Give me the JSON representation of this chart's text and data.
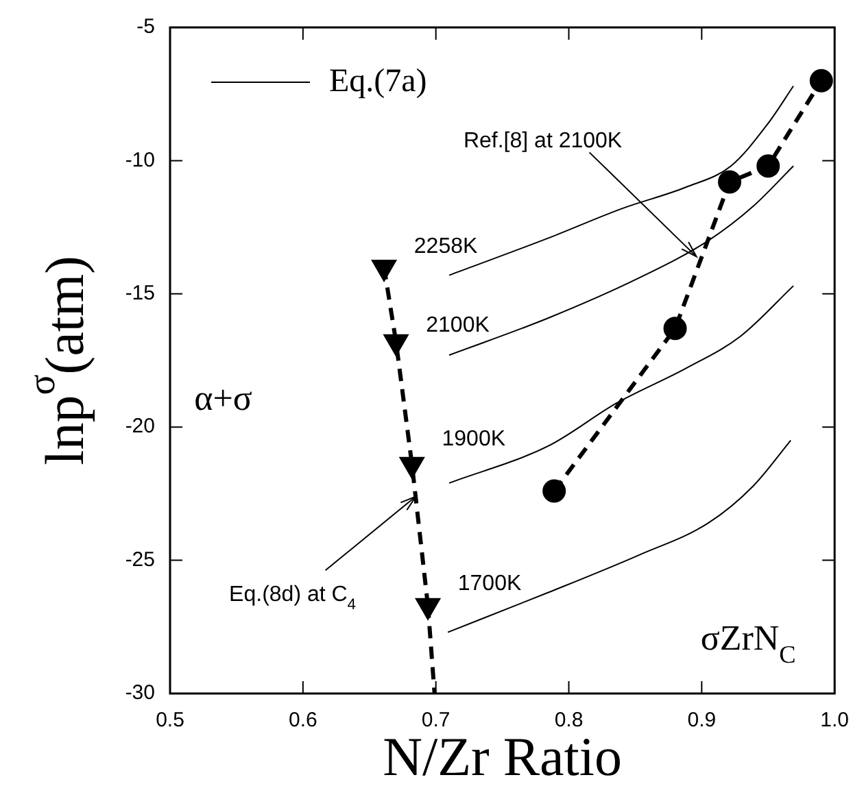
{
  "chart_data": {
    "type": "line",
    "xlabel": "N/Zr Ratio",
    "ylabel": "lnp$^{σ}$(atm)",
    "xlim": [
      0.5,
      1.0
    ],
    "xticks": [
      0.5,
      0.6,
      0.7,
      0.8,
      0.9,
      {
        "value": 1.0,
        "label": "1.0"
      }
    ],
    "ylim": [
      -30,
      -5
    ],
    "yticks": [
      -30,
      -25,
      -20,
      -15,
      -10,
      -5
    ],
    "grid": false,
    "legend": "top left",
    "series": [
      {
        "name": "Eq.(7a)",
        "color": "#000000",
        "marker": "none",
        "line_style": "solid",
        "x": [
          0.71,
          0.785,
          0.84,
          0.888,
          0.922,
          0.95,
          0.969
        ],
        "values": [
          -14.3,
          -12.9,
          -11.8,
          -11.0,
          -10.2,
          -8.6,
          -7.2
        ]
      },
      {
        "color": "#000000",
        "marker": "none",
        "line_style": "solid",
        "x": [
          0.71,
          0.785,
          0.853,
          0.905,
          0.939,
          0.969
        ],
        "values": [
          -17.3,
          -15.9,
          -14.4,
          -13.0,
          -11.7,
          -10.2
        ]
      },
      {
        "color": "#000000",
        "marker": "none",
        "line_style": "solid",
        "x": [
          0.71,
          0.785,
          0.836,
          0.888,
          0.929,
          0.969
        ],
        "values": [
          -22.1,
          -20.7,
          -19.1,
          -17.8,
          -16.6,
          -14.7
        ]
      },
      {
        "color": "#000000",
        "marker": "none",
        "line_style": "solid",
        "x": [
          0.709,
          0.785,
          0.853,
          0.905,
          0.939,
          0.967
        ],
        "values": [
          -27.7,
          -26.2,
          -24.8,
          -23.6,
          -22.2,
          -20.5
        ]
      },
      {
        "color": "#000000",
        "marker": "triangle",
        "line_style": "dashed",
        "x": [
          0.661,
          0.67,
          0.682,
          0.694
        ],
        "values": [
          -14.0,
          -16.8,
          -21.4,
          -26.7
        ]
      },
      {
        "color": "#000000",
        "marker": "none",
        "line_style": "dashed",
        "x": [
          0.694,
          0.699
        ],
        "values": [
          -26.7,
          -30
        ]
      },
      {
        "color": "#000000",
        "marker": "circle",
        "line_style": "dashed",
        "x": [
          0.789,
          0.88,
          0.921,
          0.95,
          0.99
        ],
        "values": [
          -22.4,
          -16.3,
          -10.8,
          -10.2,
          -7.0
        ]
      }
    ],
    "annotations": [
      {
        "text": "2258K",
        "x": 0.661,
        "y": -14.0
      },
      {
        "text": "2100K",
        "x": 0.67,
        "y": -16.8
      },
      {
        "text": "1900K",
        "x": 0.682,
        "y": -21.4
      },
      {
        "text": "1700K",
        "x": 0.694,
        "y": -26.7
      },
      {
        "text": "Ref.[8] at 2100K",
        "x": 0.896,
        "y": -13.6
      },
      {
        "text": "Eq.(8d) at C$_{4}$",
        "x": 0.685,
        "y": -22.6
      },
      "α+σ",
      "σZrN$_{C}$"
    ]
  }
}
